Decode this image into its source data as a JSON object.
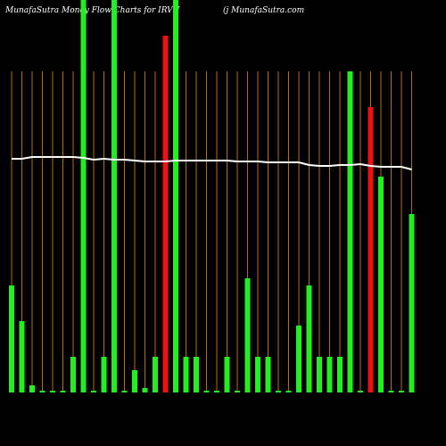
{
  "chart_data": {
    "type": "bar",
    "title": "MunafaSutra  Money Flow  Charts for IRVH",
    "subtitle": "(j MunafaSutra.com",
    "categories": [
      null,
      null,
      null,
      null,
      null,
      null,
      null,
      null,
      null,
      null,
      null,
      null,
      null,
      null,
      null,
      null,
      null,
      null,
      null,
      null,
      null,
      null,
      null,
      null,
      null,
      null,
      null,
      null,
      null,
      null,
      null,
      null,
      null,
      null,
      null,
      null,
      null,
      null,
      null,
      null
    ],
    "values": [
      120,
      80,
      8,
      2,
      2,
      2,
      40,
      440,
      2,
      40,
      440,
      2,
      25,
      5,
      40,
      400,
      440,
      40,
      40,
      2,
      2,
      40,
      2,
      128,
      40,
      40,
      2,
      2,
      75,
      120,
      40,
      40,
      40,
      360,
      2,
      320,
      242,
      2,
      2,
      200
    ],
    "colors": [
      "#22ee22",
      "#22ee22",
      "#22ee22",
      "#22ee22",
      "#22ee22",
      "#22ee22",
      "#22ee22",
      "#22ee22",
      "#22ee22",
      "#22ee22",
      "#22ee22",
      "#22ee22",
      "#22ee22",
      "#22ee22",
      "#22ee22",
      "#ee1111",
      "#22ee22",
      "#22ee22",
      "#22ee22",
      "#22ee22",
      "#22ee22",
      "#22ee22",
      "#22ee22",
      "#22ee22",
      "#22ee22",
      "#22ee22",
      "#22ee22",
      "#22ee22",
      "#22ee22",
      "#22ee22",
      "#22ee22",
      "#22ee22",
      "#22ee22",
      "#22ee22",
      "#22ee22",
      "#ee1111",
      "#22ee22",
      "#22ee22",
      "#22ee22",
      "#22ee22"
    ],
    "line": {
      "color": "#ffffff",
      "values": [
        262,
        262,
        264,
        264,
        264,
        264,
        264,
        263,
        261,
        262,
        261,
        261,
        260,
        259,
        259,
        259,
        260,
        260,
        260,
        260,
        260,
        260,
        259,
        259,
        259,
        258,
        258,
        258,
        258,
        255,
        254,
        254,
        255,
        255,
        256,
        254,
        253,
        253,
        253,
        250
      ]
    },
    "ylim": [
      0,
      440
    ]
  }
}
